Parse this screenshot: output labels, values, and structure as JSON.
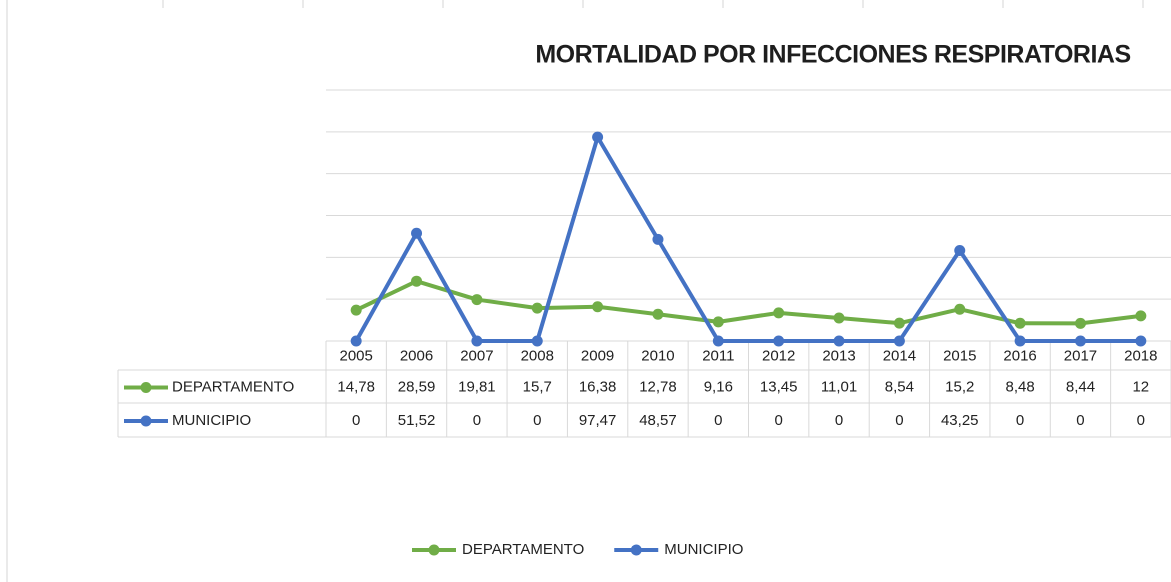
{
  "chart_data": {
    "type": "line",
    "title": "MORTALIDAD POR INFECCIONES RESPIRATORIAS",
    "categories": [
      "2005",
      "2006",
      "2007",
      "2008",
      "2009",
      "2010",
      "2011",
      "2012",
      "2013",
      "2014",
      "2015",
      "2016",
      "2017",
      "2018"
    ],
    "series": [
      {
        "name": "DEPARTAMENTO",
        "color": "#70ad47",
        "values": [
          14.78,
          28.59,
          19.81,
          15.7,
          16.38,
          12.78,
          9.16,
          13.45,
          11.01,
          8.54,
          15.2,
          8.48,
          8.44,
          12
        ],
        "value_labels": [
          "14,78",
          "28,59",
          "19,81",
          "15,7",
          "16,38",
          "12,78",
          "9,16",
          "13,45",
          "11,01",
          "8,54",
          "15,2",
          "8,48",
          "8,44",
          "12"
        ]
      },
      {
        "name": "MUNICIPIO",
        "color": "#4472c4",
        "values": [
          0,
          51.52,
          0,
          0,
          97.47,
          48.57,
          0,
          0,
          0,
          0,
          43.25,
          0,
          0,
          0
        ],
        "value_labels": [
          "0",
          "51,52",
          "0",
          "0",
          "97,47",
          "48,57",
          "0",
          "0",
          "0",
          "0",
          "43,25",
          "0",
          "0",
          "0"
        ]
      }
    ],
    "ylim": [
      0,
      120
    ],
    "yticks": [
      0,
      20,
      40,
      60,
      80,
      100,
      120
    ],
    "grid": true,
    "legend": "bottom"
  }
}
